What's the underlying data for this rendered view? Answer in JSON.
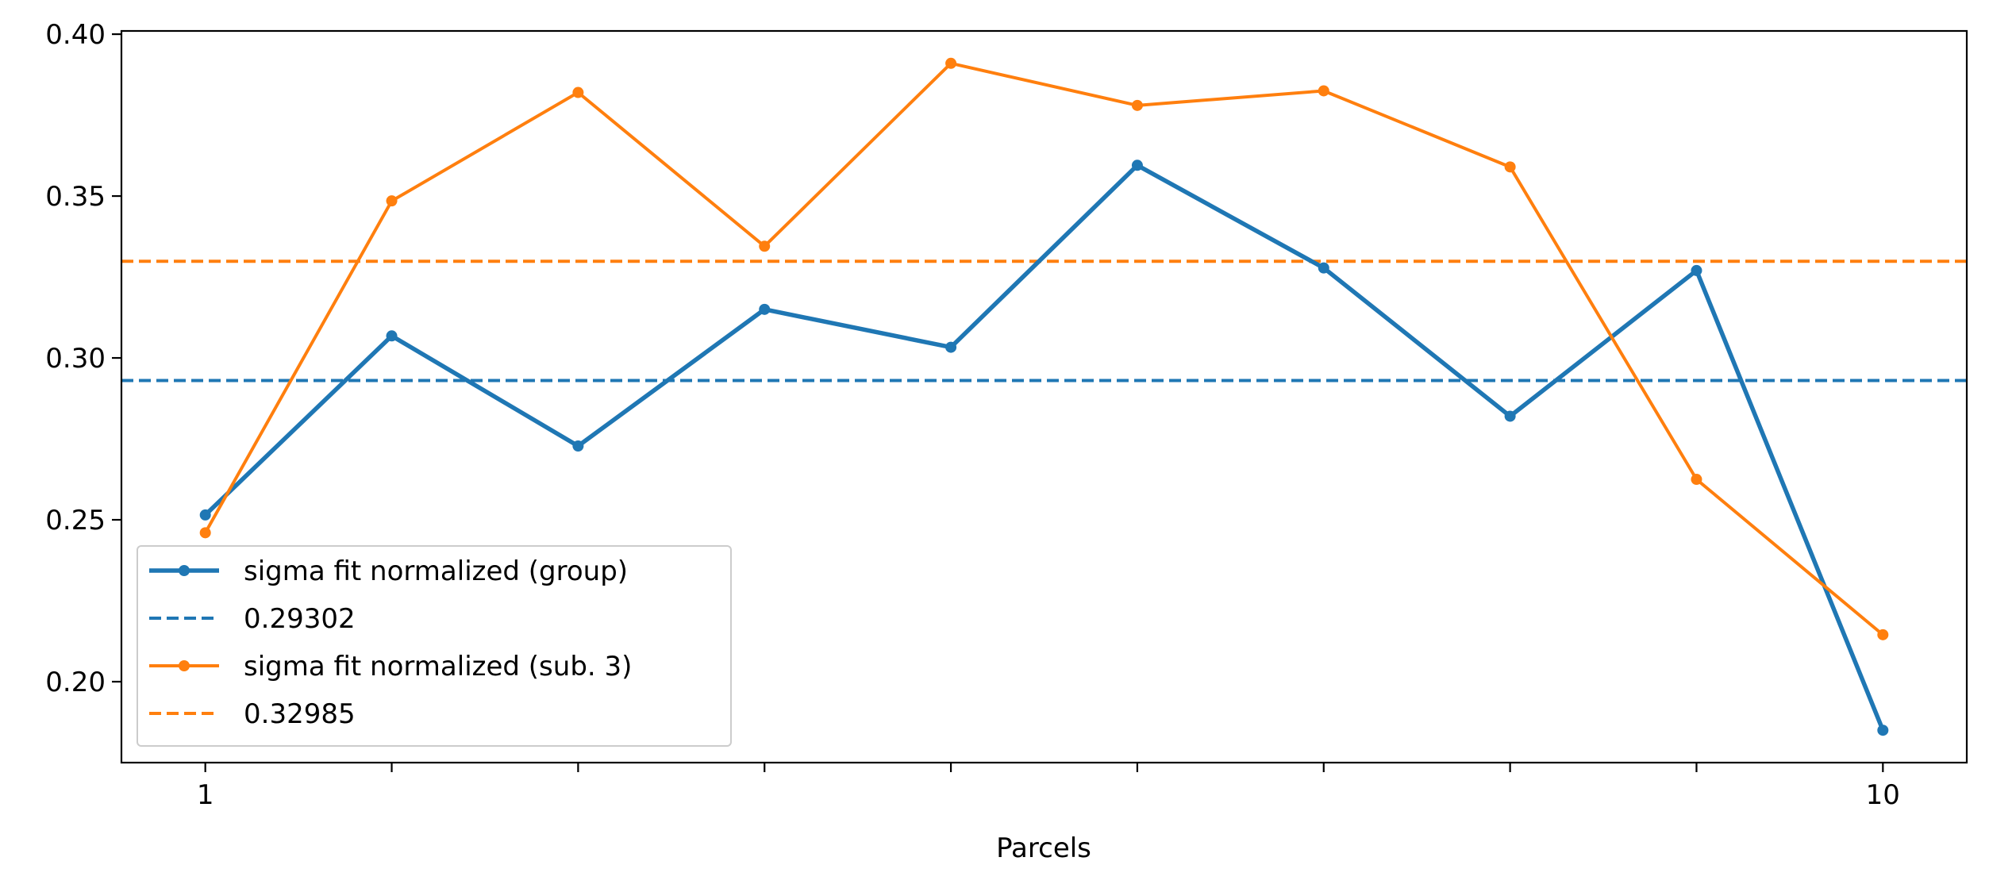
{
  "chart_data": {
    "type": "line",
    "title": "",
    "xlabel": "Parcels",
    "ylabel": "",
    "x": [
      1,
      2,
      3,
      4,
      5,
      6,
      7,
      8,
      9,
      10
    ],
    "xlim": [
      0.55,
      10.45
    ],
    "ylim": [
      0.175,
      0.401
    ],
    "xticks": [
      1,
      2,
      3,
      4,
      5,
      6,
      7,
      8,
      9,
      10
    ],
    "xtick_labels": [
      "1",
      "",
      "",
      "",
      "",
      "",
      "",
      "",
      "",
      "10"
    ],
    "yticks": [
      0.2,
      0.25,
      0.3,
      0.35,
      0.4
    ],
    "ytick_labels": [
      "0.20",
      "0.25",
      "0.30",
      "0.35",
      "0.40"
    ],
    "grid": false,
    "legend_position": "lower-left",
    "series": [
      {
        "name": "sigma fit normalized (group)",
        "color": "#1f77b4",
        "style": "solid",
        "marker": "dot",
        "values": [
          0.2515,
          0.3068,
          0.2728,
          0.315,
          0.3033,
          0.3595,
          0.3278,
          0.282,
          0.327,
          0.185
        ]
      },
      {
        "name": "sigma fit normalized (sub. 3)",
        "color": "#ff7f0e",
        "style": "solid",
        "marker": "dot",
        "values": [
          0.246,
          0.3485,
          0.382,
          0.3345,
          0.391,
          0.378,
          0.3825,
          0.359,
          0.2625,
          0.2145
        ]
      }
    ],
    "hlines": [
      {
        "label": "0.29302",
        "value": 0.29302,
        "color": "#1f77b4",
        "style": "dashed"
      },
      {
        "label": "0.32985",
        "value": 0.32985,
        "color": "#ff7f0e",
        "style": "dashed"
      }
    ],
    "legend": [
      {
        "label": "sigma fit normalized (group)",
        "color": "#1f77b4",
        "kind": "line-marker"
      },
      {
        "label": "0.29302",
        "color": "#1f77b4",
        "kind": "dashed"
      },
      {
        "label": "sigma fit normalized (sub. 3)",
        "color": "#ff7f0e",
        "kind": "line-marker"
      },
      {
        "label": "0.32985",
        "color": "#ff7f0e",
        "kind": "dashed"
      }
    ]
  }
}
